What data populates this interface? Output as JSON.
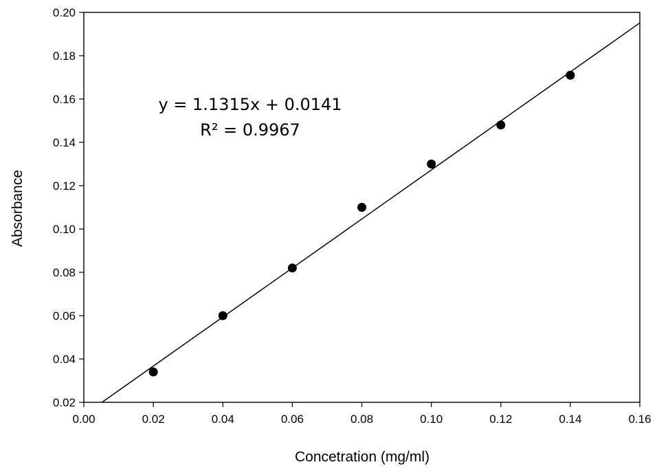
{
  "chart_data": {
    "type": "scatter",
    "title": "",
    "xlabel": "Concetration (mg/ml)",
    "ylabel": "Absorbance",
    "xlim": [
      0.0,
      0.16
    ],
    "ylim": [
      0.02,
      0.2
    ],
    "xticks": [
      "0.00",
      "0.02",
      "0.04",
      "0.06",
      "0.08",
      "0.10",
      "0.12",
      "0.14",
      "0.16"
    ],
    "yticks": [
      "0.02",
      "0.04",
      "0.06",
      "0.08",
      "0.10",
      "0.12",
      "0.14",
      "0.16",
      "0.18",
      "0.20"
    ],
    "grid": false,
    "series": [
      {
        "x": [
          0.02,
          0.04,
          0.06,
          0.08,
          0.1,
          0.12,
          0.14
        ],
        "y": [
          0.034,
          0.06,
          0.082,
          0.11,
          0.13,
          0.148,
          0.171
        ]
      }
    ],
    "trendline": {
      "slope": 1.1315,
      "intercept": 0.0141
    },
    "annotations": {
      "equation": "y = 1.1315x + 0.0141",
      "r_squared": "R² = 0.9967"
    },
    "colors": {
      "marker": "#000000",
      "line": "#000000"
    }
  }
}
